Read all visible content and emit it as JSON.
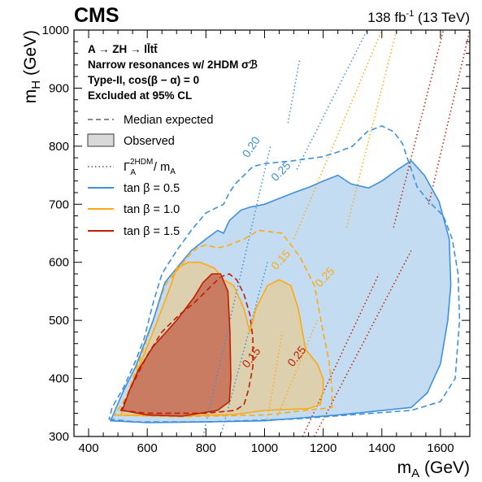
{
  "header": {
    "experiment": "CMS",
    "luminosity": "138 fb",
    "luminosity_exp": "-1",
    "energy": "(13 TeV)"
  },
  "annotations": [
    "A → ZH → ll̄tt̄",
    "Narrow resonances w/ 2HDM σℬ",
    "Type-II, cos(β − α) = 0",
    "Excluded at 95% CL"
  ],
  "legend": {
    "median_expected": "Median expected",
    "observed": "Observed",
    "width_main": "Γ",
    "width_sup": "2HDM",
    "width_sub": "A",
    "width_tail": " / m",
    "width_tail_sub": "A",
    "tb05": "tan β = 0.5",
    "tb10": "tan β = 1.0",
    "tb15": "tan β = 1.5"
  },
  "colors": {
    "tb05": "#3f90da",
    "tb05_fill": "#c4dcf2",
    "tb10": "#ffa90e",
    "tb10_fill": "#dcd0ae",
    "tb15": "#bd1f01",
    "tb15_fill": "#c97c62",
    "expected_legend": "#7a7a7a",
    "observed_legend_fill": "#d9d9d9"
  },
  "chart_data": {
    "type": "area",
    "xlabel": "m",
    "xlabel_sub": "A",
    "xlabel_unit": " (GeV)",
    "ylabel": "m",
    "ylabel_sub": "H",
    "ylabel_unit": " (GeV)",
    "xlim": [
      350,
      1700
    ],
    "ylim": [
      300,
      1000
    ],
    "xticks": [
      400,
      600,
      800,
      1000,
      1200,
      1400,
      1600
    ],
    "yticks": [
      300,
      400,
      500,
      600,
      700,
      800,
      900,
      1000
    ],
    "series": [
      {
        "key": "tb05",
        "observed": [
          [
            475,
            327
          ],
          [
            600,
            324
          ],
          [
            800,
            325
          ],
          [
            1000,
            327
          ],
          [
            1250,
            337
          ],
          [
            1500,
            350
          ],
          [
            1555,
            375
          ],
          [
            1600,
            425
          ],
          [
            1625,
            500
          ],
          [
            1635,
            560
          ],
          [
            1630,
            640
          ],
          [
            1595,
            705
          ],
          [
            1545,
            750
          ],
          [
            1500,
            775
          ],
          [
            1455,
            760
          ],
          [
            1400,
            740
          ],
          [
            1355,
            728
          ],
          [
            1295,
            735
          ],
          [
            1250,
            750
          ],
          [
            1200,
            740
          ],
          [
            1155,
            730
          ],
          [
            1100,
            720
          ],
          [
            1050,
            710
          ],
          [
            1000,
            700
          ],
          [
            950,
            695
          ],
          [
            920,
            690
          ],
          [
            880,
            672
          ],
          [
            860,
            650
          ],
          [
            840,
            655
          ],
          [
            800,
            640
          ],
          [
            750,
            620
          ],
          [
            700,
            590
          ],
          [
            660,
            565
          ],
          [
            620,
            500
          ],
          [
            590,
            460
          ],
          [
            560,
            420
          ],
          [
            520,
            380
          ],
          [
            490,
            345
          ]
        ],
        "expected": [
          [
            470,
            330
          ],
          [
            560,
            325
          ],
          [
            800,
            325
          ],
          [
            1100,
            330
          ],
          [
            1500,
            345
          ],
          [
            1600,
            360
          ],
          [
            1650,
            400
          ],
          [
            1665,
            500
          ],
          [
            1660,
            580
          ],
          [
            1640,
            640
          ],
          [
            1610,
            680
          ],
          [
            1560,
            705
          ],
          [
            1520,
            730
          ],
          [
            1500,
            760
          ],
          [
            1470,
            805
          ],
          [
            1440,
            825
          ],
          [
            1400,
            835
          ],
          [
            1350,
            825
          ],
          [
            1300,
            800
          ],
          [
            1250,
            790
          ],
          [
            1200,
            782
          ],
          [
            1100,
            775
          ],
          [
            1000,
            770
          ],
          [
            960,
            765
          ],
          [
            900,
            735
          ],
          [
            880,
            720
          ],
          [
            860,
            700
          ],
          [
            800,
            685
          ],
          [
            750,
            655
          ],
          [
            700,
            620
          ],
          [
            650,
            580
          ],
          [
            620,
            530
          ],
          [
            590,
            470
          ],
          [
            560,
            430
          ],
          [
            520,
            385
          ],
          [
            480,
            350
          ]
        ]
      },
      {
        "key": "tb10",
        "observed": [
          [
            510,
            337
          ],
          [
            700,
            335
          ],
          [
            900,
            338
          ],
          [
            1000,
            345
          ],
          [
            1150,
            348
          ],
          [
            1190,
            355
          ],
          [
            1200,
            380
          ],
          [
            1200,
            400
          ],
          [
            1180,
            425
          ],
          [
            1140,
            450
          ],
          [
            1115,
            520
          ],
          [
            1090,
            560
          ],
          [
            1050,
            570
          ],
          [
            1010,
            560
          ],
          [
            970,
            520
          ],
          [
            950,
            480
          ],
          [
            930,
            520
          ],
          [
            895,
            560
          ],
          [
            860,
            570
          ],
          [
            830,
            590
          ],
          [
            780,
            600
          ],
          [
            740,
            600
          ],
          [
            700,
            590
          ],
          [
            680,
            560
          ],
          [
            650,
            520
          ],
          [
            620,
            480
          ],
          [
            580,
            430
          ],
          [
            540,
            380
          ]
        ],
        "expected": [
          [
            490,
            337
          ],
          [
            700,
            334
          ],
          [
            1000,
            337
          ],
          [
            1230,
            350
          ],
          [
            1230,
            380
          ],
          [
            1220,
            430
          ],
          [
            1200,
            480
          ],
          [
            1170,
            560
          ],
          [
            1120,
            610
          ],
          [
            1060,
            650
          ],
          [
            980,
            655
          ],
          [
            930,
            640
          ],
          [
            870,
            628
          ],
          [
            840,
            625
          ],
          [
            800,
            630
          ],
          [
            770,
            625
          ],
          [
            740,
            610
          ],
          [
            700,
            585
          ],
          [
            660,
            560
          ],
          [
            620,
            500
          ],
          [
            580,
            440
          ],
          [
            530,
            370
          ]
        ]
      },
      {
        "key": "tb15",
        "observed": [
          [
            515,
            345
          ],
          [
            600,
            337
          ],
          [
            720,
            335
          ],
          [
            840,
            345
          ],
          [
            880,
            360
          ],
          [
            885,
            400
          ],
          [
            882,
            480
          ],
          [
            875,
            550
          ],
          [
            850,
            580
          ],
          [
            820,
            580
          ],
          [
            790,
            565
          ],
          [
            760,
            540
          ],
          [
            700,
            500
          ],
          [
            620,
            455
          ],
          [
            570,
            415
          ],
          [
            540,
            380
          ]
        ],
        "expected": [
          [
            510,
            345
          ],
          [
            600,
            340
          ],
          [
            800,
            340
          ],
          [
            900,
            345
          ],
          [
            930,
            355
          ],
          [
            945,
            380
          ],
          [
            960,
            420
          ],
          [
            960,
            470
          ],
          [
            950,
            510
          ],
          [
            930,
            545
          ],
          [
            905,
            570
          ],
          [
            880,
            580
          ],
          [
            850,
            575
          ],
          [
            810,
            555
          ],
          [
            760,
            530
          ],
          [
            710,
            510
          ],
          [
            650,
            480
          ],
          [
            600,
            440
          ],
          [
            550,
            390
          ]
        ]
      }
    ],
    "width_lines": [
      {
        "key": "tb05",
        "label": "0.20",
        "segments": [
          [
            [
              790,
              300
            ],
            [
              1020,
              800
            ]
          ],
          [
            [
              1080,
              840
            ],
            [
              1120,
              950
            ]
          ]
        ]
      },
      {
        "key": "tb05",
        "label": "0.25",
        "segments": [
          [
            [
              850,
              300
            ],
            [
              1010,
              600
            ]
          ],
          [
            [
              1110,
              760
            ],
            [
              1350,
              1000
            ]
          ]
        ]
      },
      {
        "key": "tb10",
        "label": "0.15",
        "segments": [
          [
            [
              1010,
              330
            ],
            [
              1060,
              480
            ]
          ],
          [
            [
              1100,
              640
            ],
            [
              1400,
              1000
            ]
          ]
        ]
      },
      {
        "key": "tb10",
        "label": "0.25",
        "segments": [
          [
            [
              1040,
              330
            ],
            [
              1180,
              500
            ]
          ],
          [
            [
              1280,
              660
            ],
            [
              1450,
              1000
            ]
          ]
        ]
      },
      {
        "key": "tb15",
        "label": "0.15",
        "segments": [
          [
            [
              1130,
              300
            ],
            [
              1390,
              580
            ]
          ],
          [
            [
              1440,
              660
            ],
            [
              1610,
              1000
            ]
          ]
        ]
      },
      {
        "key": "tb15",
        "label": "0.25",
        "segments": [
          [
            [
              1170,
              300
            ],
            [
              1500,
              620
            ]
          ],
          [
            [
              1560,
              700
            ],
            [
              1700,
              1000
            ]
          ]
        ]
      }
    ],
    "contour_labels": [
      {
        "key": "tb05",
        "text": "0.20",
        "x": 965,
        "y": 795,
        "angle": -56
      },
      {
        "key": "tb05",
        "text": "0.25",
        "x": 1065,
        "y": 752,
        "angle": -45
      },
      {
        "key": "tb10",
        "text": "0.15",
        "x": 1065,
        "y": 600,
        "angle": -48
      },
      {
        "key": "tb10",
        "text": "0.25",
        "x": 1215,
        "y": 570,
        "angle": -48
      },
      {
        "key": "tb15",
        "text": "0.15",
        "x": 965,
        "y": 432,
        "angle": -52
      },
      {
        "key": "tb15",
        "text": "0.25",
        "x": 1120,
        "y": 434,
        "angle": -52
      }
    ]
  }
}
